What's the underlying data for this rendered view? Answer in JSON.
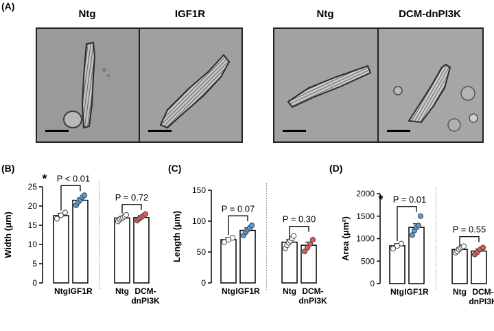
{
  "panel_a": {
    "letter": "(A)",
    "images": [
      {
        "title": "Ntg",
        "description": "elongated rod-shaped cardiomyocyte"
      },
      {
        "title": "IGF1R",
        "description": "wider cardiomyocyte"
      },
      {
        "title": "Ntg",
        "description": "cardiomyocyte lying diagonally"
      },
      {
        "title": "DCM-dnPI3K",
        "description": "cardiomyocyte lying diagonally"
      }
    ]
  },
  "colors": {
    "ntg_dot": "#ffffff",
    "igf1r_dot": "#5b9bd5",
    "dnpi3k_dot": "#e05b5b",
    "bar_fill": "#ffffff",
    "bar_stroke": "#000000"
  },
  "chart_data": [
    {
      "letter": "(B)",
      "type": "bar",
      "ylabel": "Width (μm)",
      "ylim": [
        0,
        25
      ],
      "yticks": [
        0,
        5,
        10,
        15,
        20,
        25
      ],
      "groups": [
        {
          "bars": [
            {
              "label": "Ntg",
              "value": 17.5,
              "error": 0.6,
              "dot_color": "#ffffff",
              "points": [
                16.7,
                17.6,
                18.3
              ]
            },
            {
              "label": "IGF1R",
              "value": 21.5,
              "error": 0.6,
              "dot_color": "#5b9bd5",
              "points": [
                20.2,
                21.0,
                21.6,
                22.3,
                22.8
              ]
            }
          ],
          "pvalue": "P < 0.01",
          "significant": true,
          "star": "*"
        },
        {
          "bars": [
            {
              "label": "Ntg",
              "value": 16.9,
              "error": 0.4,
              "dot_color": "#ffffff",
              "points": [
                16.0,
                16.5,
                16.8,
                17.0,
                17.3,
                17.7
              ]
            },
            {
              "label": "DCM-\ndnPI3K",
              "value": 17.0,
              "error": 0.5,
              "dot_color": "#e05b5b",
              "points": [
                16.2,
                16.7,
                17.1,
                17.5,
                17.9
              ]
            }
          ],
          "pvalue": "P = 0.72",
          "significant": false
        }
      ]
    },
    {
      "letter": "(C)",
      "type": "bar",
      "ylabel": "Length (μm)",
      "ylim": [
        0,
        150
      ],
      "yticks": [
        0,
        50,
        100,
        150
      ],
      "groups": [
        {
          "bars": [
            {
              "label": "Ntg",
              "value": 70,
              "error": 3,
              "dot_color": "#ffffff",
              "points": [
                66,
                70,
                73
              ]
            },
            {
              "label": "IGF1R",
              "value": 85,
              "error": 4,
              "dot_color": "#5b9bd5",
              "points": [
                77,
                82,
                86,
                89,
                93
              ]
            }
          ],
          "pvalue": "P = 0.07",
          "significant": false
        },
        {
          "bars": [
            {
              "label": "Ntg",
              "value": 66,
              "error": 4,
              "dot_color": "#ffffff",
              "points": [
                56,
                61,
                65,
                68,
                72,
                76
              ]
            },
            {
              "label": "DCM-\ndnPI3K",
              "value": 61,
              "error": 5,
              "dot_color": "#e05b5b",
              "points": [
                51,
                57,
                63,
                70
              ]
            }
          ],
          "pvalue": "P = 0.30",
          "significant": false
        }
      ]
    },
    {
      "letter": "(D)",
      "type": "bar",
      "ylabel": "Area (μm²)",
      "ylim": [
        0,
        2000
      ],
      "yticks": [
        0,
        500,
        1000,
        1500,
        2000
      ],
      "groups": [
        {
          "bars": [
            {
              "label": "Ntg",
              "value": 840,
              "error": 45,
              "dot_color": "#ffffff",
              "points": [
                780,
                840,
                890
              ]
            },
            {
              "label": "IGF1R",
              "value": 1250,
              "error": 80,
              "dot_color": "#5b9bd5",
              "points": [
                1080,
                1180,
                1250,
                1290,
                1500
              ]
            }
          ],
          "pvalue": "P = 0.01",
          "significant": true,
          "star": "*"
        },
        {
          "bars": [
            {
              "label": "Ntg",
              "value": 760,
              "error": 35,
              "dot_color": "#ffffff",
              "points": [
                690,
                720,
                760,
                790,
                810,
                830
              ]
            },
            {
              "label": "DCM-\ndnPI3K",
              "value": 725,
              "error": 45,
              "dot_color": "#e05b5b",
              "points": [
                650,
                700,
                760,
                800
              ]
            }
          ],
          "pvalue": "P = 0.55",
          "significant": false
        }
      ]
    }
  ]
}
